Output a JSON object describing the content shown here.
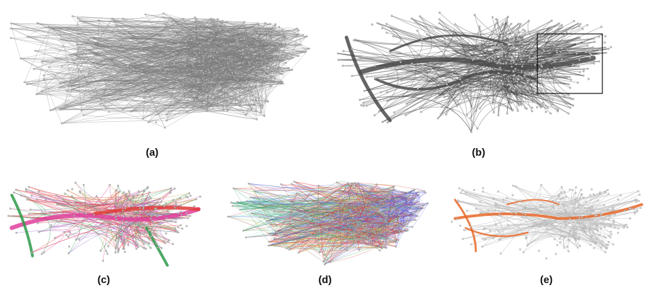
{
  "figure": {
    "panels": [
      {
        "id": "a",
        "label": "(a)",
        "style": "raw-gray"
      },
      {
        "id": "b",
        "label": "(b)",
        "style": "bundled-gray"
      },
      {
        "id": "c",
        "label": "(c)",
        "style": "bundled-color"
      },
      {
        "id": "d",
        "label": "(d)",
        "style": "raw-color"
      },
      {
        "id": "e",
        "label": "(e)",
        "style": "highlight-orange"
      }
    ],
    "colors": {
      "edge_gray": "#7a7a7a",
      "edge_dark": "#4a4a4a",
      "node_gray": "#c8c8c8",
      "magenta": "#e0409a",
      "green": "#2e9a4a",
      "red": "#e03a3a",
      "blue": "#5a5ae0",
      "orange": "#e8692a",
      "light_gray": "#bdbdbd"
    }
  }
}
